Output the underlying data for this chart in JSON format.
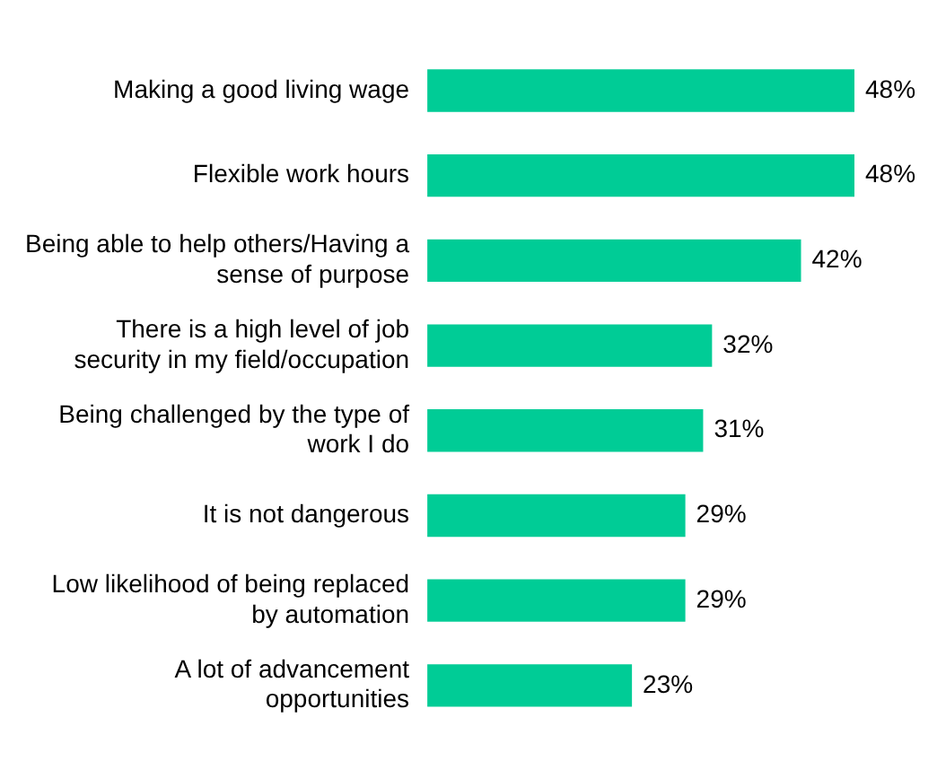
{
  "chart_data": {
    "type": "bar",
    "orientation": "horizontal",
    "categories": [
      "Making a good living wage",
      "Flexible work hours",
      "Being able to help others/Having a sense of purpose",
      "There is a high level of job security in my field/occupation",
      "Being challenged by the type of work I do",
      "It is not dangerous",
      "Low likelihood of being replaced by automation",
      "A lot of advancement opportunities"
    ],
    "values": [
      48,
      48,
      42,
      32,
      31,
      29,
      29,
      23
    ],
    "value_labels": [
      "48%",
      "48%",
      "42%",
      "32%",
      "31%",
      "29%",
      "29%",
      "23%"
    ],
    "color": "#00cc96"
  }
}
